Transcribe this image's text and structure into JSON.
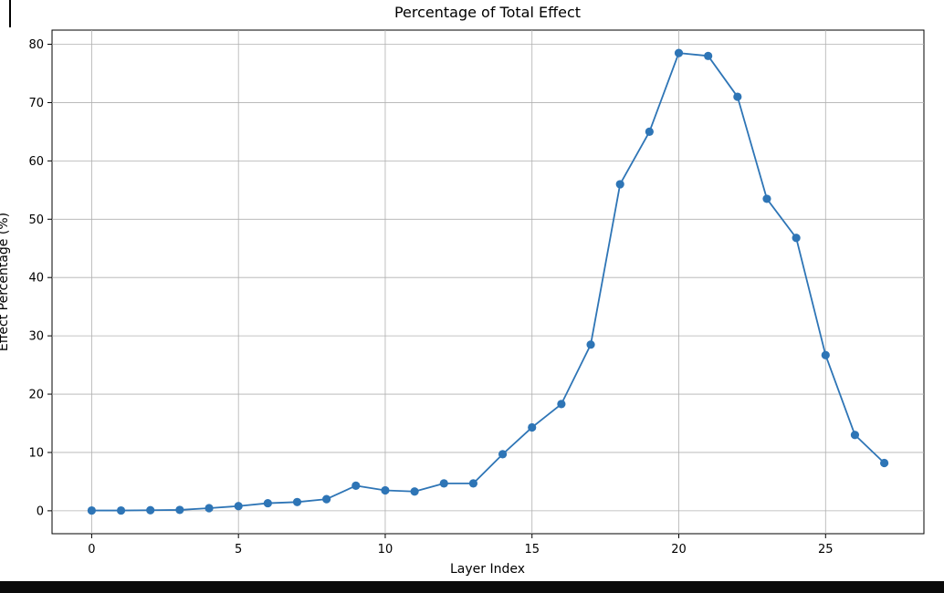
{
  "chart_data": {
    "type": "line",
    "title": "Percentage of Total Effect",
    "xlabel": "Layer Index",
    "ylabel": "Effect Percentage (%)",
    "x": [
      0,
      1,
      2,
      3,
      4,
      5,
      6,
      7,
      8,
      9,
      10,
      11,
      12,
      13,
      14,
      15,
      16,
      17,
      18,
      19,
      20,
      21,
      22,
      23,
      24,
      25,
      26,
      27
    ],
    "values": [
      0.05,
      0.05,
      0.1,
      0.15,
      0.45,
      0.8,
      1.3,
      1.5,
      2.0,
      4.3,
      3.5,
      3.3,
      4.7,
      4.7,
      9.7,
      14.3,
      18.3,
      28.5,
      56.0,
      65.0,
      78.5,
      78.0,
      71.0,
      53.5,
      46.8,
      26.7,
      13.0,
      8.2
    ],
    "x_ticks": [
      0,
      5,
      10,
      15,
      20,
      25
    ],
    "y_ticks": [
      0,
      10,
      20,
      30,
      40,
      50,
      60,
      70,
      80
    ],
    "xlim": [
      -1.35,
      28.35
    ],
    "ylim": [
      -3.93,
      82.43
    ],
    "grid": "on",
    "legend": "none",
    "line_color": "#2e75b6",
    "marker_color": "#2e75b6",
    "grid_color": "#b0b0b0",
    "series_name": "Effect Percentage"
  }
}
